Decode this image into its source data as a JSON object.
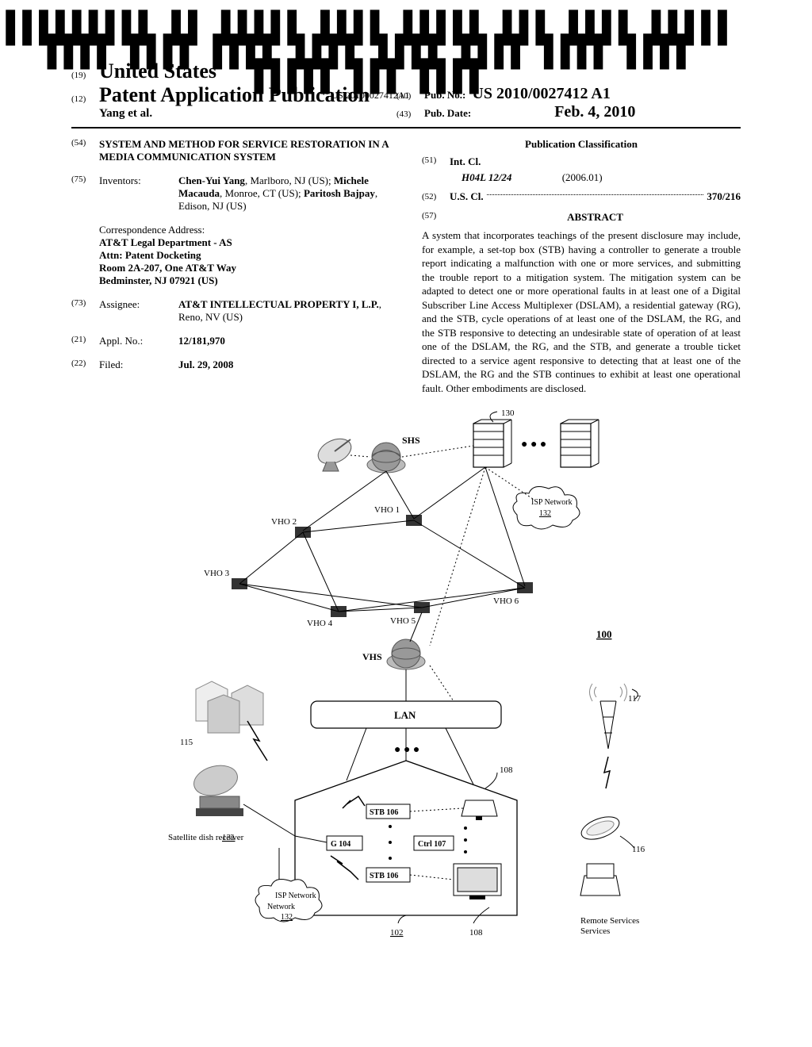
{
  "barcode": {
    "text": "US 20100027412A1"
  },
  "header": {
    "country_num": "(19)",
    "country": "United States",
    "pubtype_num": "(12)",
    "pubtype": "Patent Application Publication",
    "authors": "Yang et al.",
    "pubno_num": "(10)",
    "pubno_label": "Pub. No.:",
    "pubno": "US 2010/0027412 A1",
    "pubdate_num": "(43)",
    "pubdate_label": "Pub. Date:",
    "pubdate": "Feb. 4, 2010"
  },
  "left_col": {
    "title_num": "(54)",
    "title": "SYSTEM AND METHOD FOR SERVICE RESTORATION IN A MEDIA COMMUNICATION SYSTEM",
    "inventors_num": "(75)",
    "inventors_label": "Inventors:",
    "inventors": "Chen-Yui Yang, Marlboro, NJ (US); Michele Macauda, Monroe, CT (US); Paritosh Bajpay, Edison, NJ (US)",
    "corr_label": "Correspondence Address:",
    "corr_line1": "AT&T Legal Department - AS",
    "corr_line2": "Attn: Patent Docketing",
    "corr_line3": "Room 2A-207, One AT&T Way",
    "corr_line4": "Bedminster, NJ 07921 (US)",
    "assignee_num": "(73)",
    "assignee_label": "Assignee:",
    "assignee": "AT&T INTELLECTUAL PROPERTY I, L.P., Reno, NV (US)",
    "applno_num": "(21)",
    "applno_label": "Appl. No.:",
    "applno": "12/181,970",
    "filed_num": "(22)",
    "filed_label": "Filed:",
    "filed": "Jul. 29, 2008"
  },
  "right_col": {
    "pubclass_header": "Publication Classification",
    "intcl_num": "(51)",
    "intcl_label": "Int. Cl.",
    "intcl_code": "H04L 12/24",
    "intcl_year": "(2006.01)",
    "uscl_num": "(52)",
    "uscl_label": "U.S. Cl.",
    "uscl_value": "370/216",
    "abstract_num": "(57)",
    "abstract_header": "ABSTRACT",
    "abstract": "A system that incorporates teachings of the present disclosure may include, for example, a set-top box (STB) having a controller to generate a trouble report indicating a malfunction with one or more services, and submitting the trouble report to a mitigation system. The mitigation system can be adapted to detect one or more operational faults in at least one of a Digital Subscriber Line Access Multiplexer (DSLAM), a residential gateway (RG), and the STB, cycle operations of at least one of the DSLAM, the RG, and the STB responsive to detecting an undesirable state of operation of at least one of the DSLAM, the RG, and the STB, and generate a trouble ticket directed to a service agent responsive to detecting that at least one of the DSLAM, the RG and the STB continues to exhibit at least one operational fault. Other embodiments are disclosed."
  },
  "figure": {
    "ref_100": "100",
    "ref_130": "130",
    "ref_117": "117",
    "ref_116": "116",
    "ref_115": "115",
    "ref_108a": "108",
    "ref_108b": "108",
    "ref_102": "102",
    "shs": "SHS",
    "vho1": "VHO 1",
    "vho2": "VHO 2",
    "vho3": "VHO 3",
    "vho4": "VHO 4",
    "vho5": "VHO 5",
    "vho6": "VHO 6",
    "vhs": "VHS",
    "isp": "ISP Network",
    "isp_ref": "132",
    "lan": "LAN",
    "stb": "STB 106",
    "stb2": "STB 106",
    "gateway": "G 104",
    "ctrl": "Ctrl 107",
    "sat_label": "Satellite dish receiver",
    "sat_ref": "131",
    "remote": "Remote Services",
    "isp2": "ISP Network",
    "isp2_ref": "132"
  }
}
